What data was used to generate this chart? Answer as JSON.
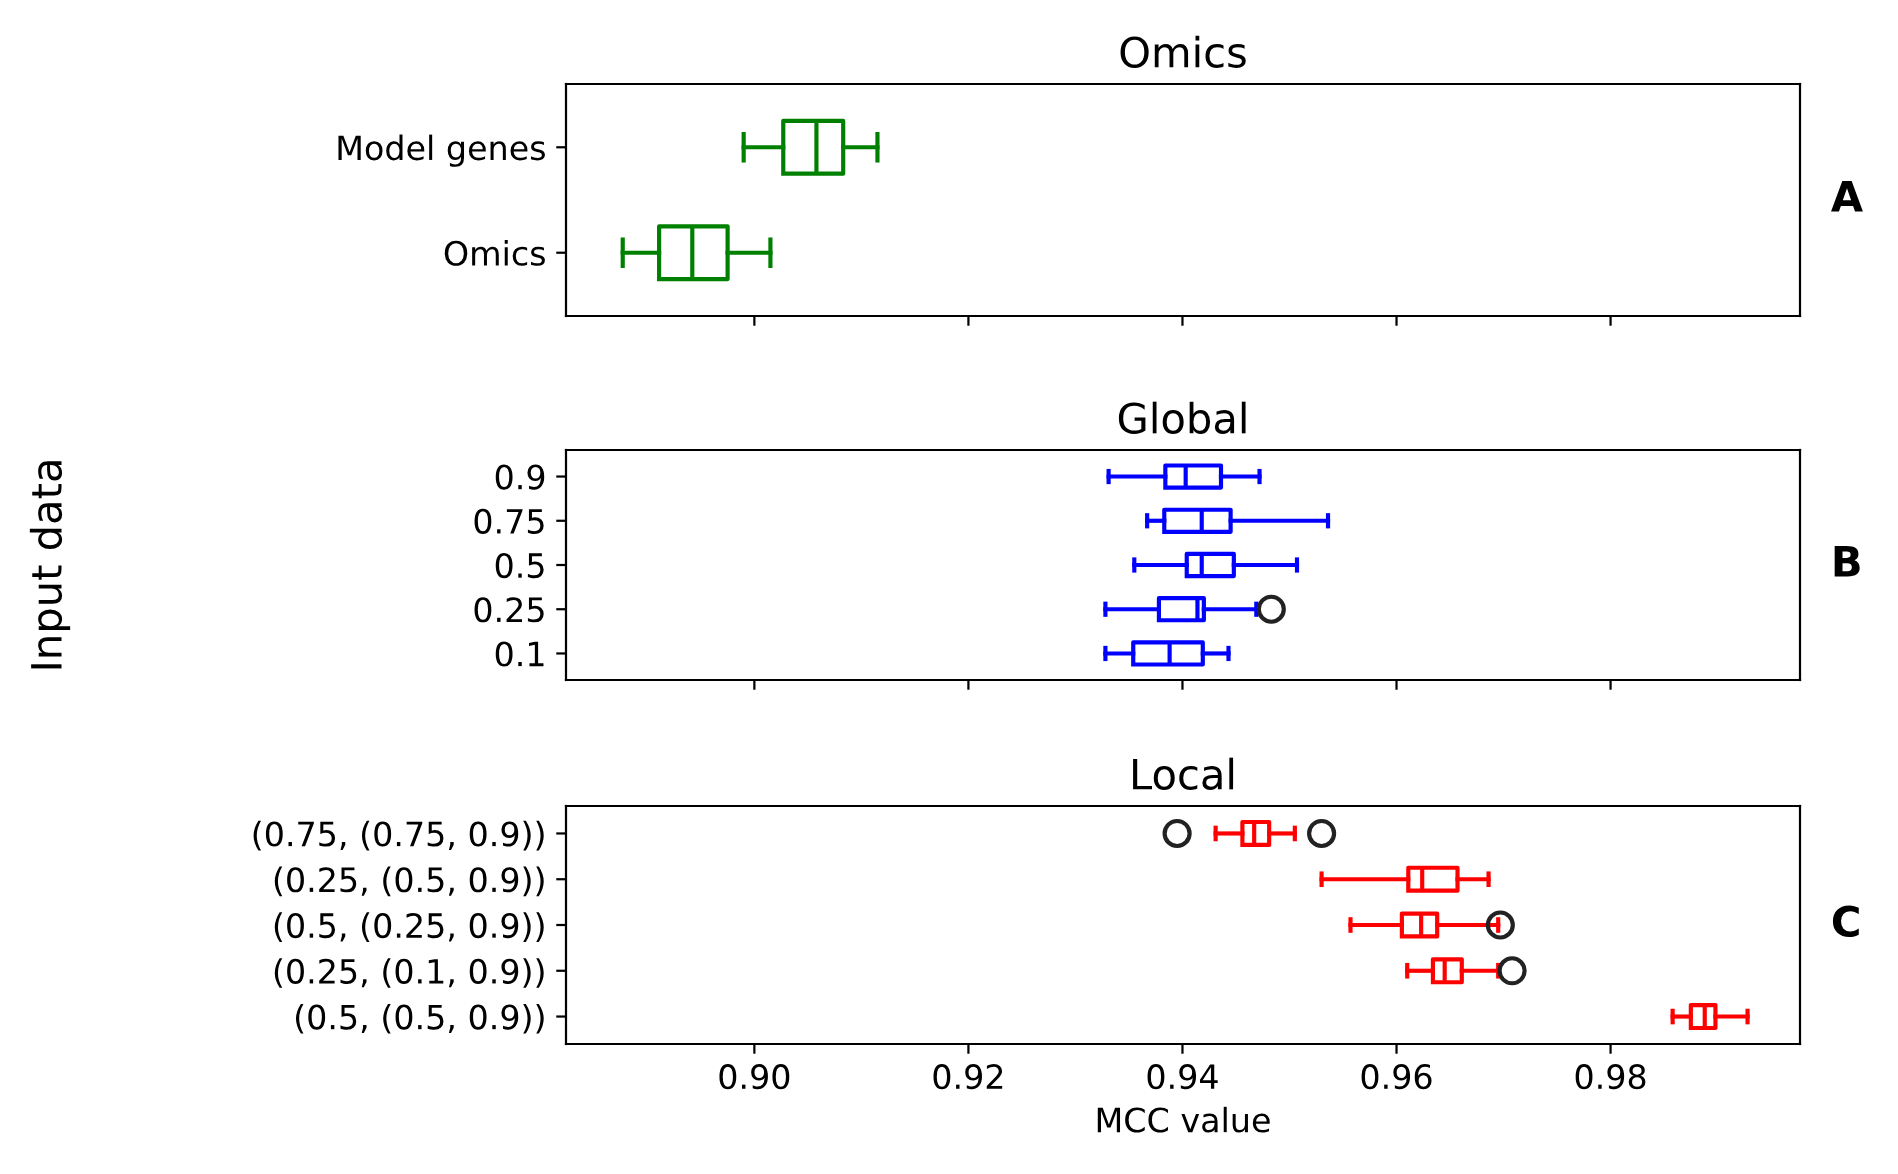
{
  "chart_data": [
    {
      "type": "box",
      "title": "Omics",
      "orientation": "horizontal",
      "categories": [
        "Model genes",
        "Omics"
      ],
      "xlim": [
        0.8824,
        0.9977
      ],
      "xticks": [
        {
          "value": 0.9,
          "label": null
        },
        {
          "value": 0.92,
          "label": null
        },
        {
          "value": 0.94,
          "label": null
        },
        {
          "value": 0.96,
          "label": null
        },
        {
          "value": 0.98,
          "label": null
        }
      ],
      "tick_labels": "y",
      "grid": false,
      "annotations": [
        "A"
      ],
      "series": [
        {
          "color": "#008000",
          "boxes": [
            {
              "low": 0.899,
              "q1": 0.9027,
              "median": 0.9058,
              "q3": 0.9083,
              "high": 0.9115
            },
            {
              "low": 0.8877,
              "q1": 0.8911,
              "median": 0.8942,
              "q3": 0.8975,
              "high": 0.9015
            }
          ]
        }
      ]
    },
    {
      "type": "box",
      "title": "Global",
      "ylabel": "Input data",
      "orientation": "horizontal",
      "categories": [
        "0.9",
        "0.75",
        "0.5",
        "0.25",
        "0.1"
      ],
      "xlim": [
        0.8824,
        0.9977
      ],
      "xticks": [
        {
          "value": 0.9,
          "label": null
        },
        {
          "value": 0.92,
          "label": null
        },
        {
          "value": 0.94,
          "label": null
        },
        {
          "value": 0.96,
          "label": null
        },
        {
          "value": 0.98,
          "label": null
        }
      ],
      "tick_labels": "y",
      "grid": false,
      "marker": "circle",
      "annotations": [
        "B"
      ],
      "series": [
        {
          "color": "#0000ff",
          "boxes": [
            {
              "low": 0.9331,
              "q1": 0.9384,
              "median": 0.9403,
              "q3": 0.9436,
              "high": 0.9472
            },
            {
              "low": 0.9367,
              "q1": 0.9383,
              "median": 0.9418,
              "q3": 0.9445,
              "high": 0.9536
            },
            {
              "low": 0.9355,
              "q1": 0.9404,
              "median": 0.9418,
              "q3": 0.9448,
              "high": 0.9507
            },
            {
              "low": 0.9328,
              "q1": 0.9378,
              "median": 0.9414,
              "q3": 0.942,
              "high": 0.9469,
              "outliers": [
                0.9483
              ]
            },
            {
              "low": 0.9328,
              "q1": 0.9354,
              "median": 0.9388,
              "q3": 0.9419,
              "high": 0.9443
            }
          ]
        }
      ]
    },
    {
      "type": "box",
      "title": "Local",
      "xlabel": "MCC value",
      "orientation": "horizontal",
      "categories": [
        "(0.75, (0.75, 0.9))",
        "(0.25, (0.5, 0.9))",
        "(0.5, (0.25, 0.9))",
        "(0.25, (0.1, 0.9))",
        "(0.5, (0.5, 0.9))"
      ],
      "xlim": [
        0.8824,
        0.9977
      ],
      "xticks": [
        {
          "value": 0.9,
          "label": "0.90"
        },
        {
          "value": 0.92,
          "label": "0.92"
        },
        {
          "value": 0.94,
          "label": "0.94"
        },
        {
          "value": 0.96,
          "label": "0.96"
        },
        {
          "value": 0.98,
          "label": "0.98"
        }
      ],
      "grid": false,
      "marker": "circle",
      "annotations": [
        "C"
      ],
      "series": [
        {
          "color": "#ff0000",
          "boxes": [
            {
              "low": 0.9431,
              "q1": 0.9456,
              "median": 0.9467,
              "q3": 0.9481,
              "high": 0.9505,
              "outliers": [
                0.9395,
                0.953
              ]
            },
            {
              "low": 0.953,
              "q1": 0.9611,
              "median": 0.9624,
              "q3": 0.9657,
              "high": 0.9686
            },
            {
              "low": 0.9557,
              "q1": 0.9605,
              "median": 0.9623,
              "q3": 0.9638,
              "high": 0.9695,
              "outliers": [
                0.9697
              ]
            },
            {
              "low": 0.961,
              "q1": 0.9634,
              "median": 0.9645,
              "q3": 0.9661,
              "high": 0.9695,
              "outliers": [
                0.9708
              ]
            },
            {
              "low": 0.9858,
              "q1": 0.9875,
              "median": 0.9888,
              "q3": 0.9898,
              "high": 0.9928
            }
          ]
        }
      ]
    }
  ]
}
